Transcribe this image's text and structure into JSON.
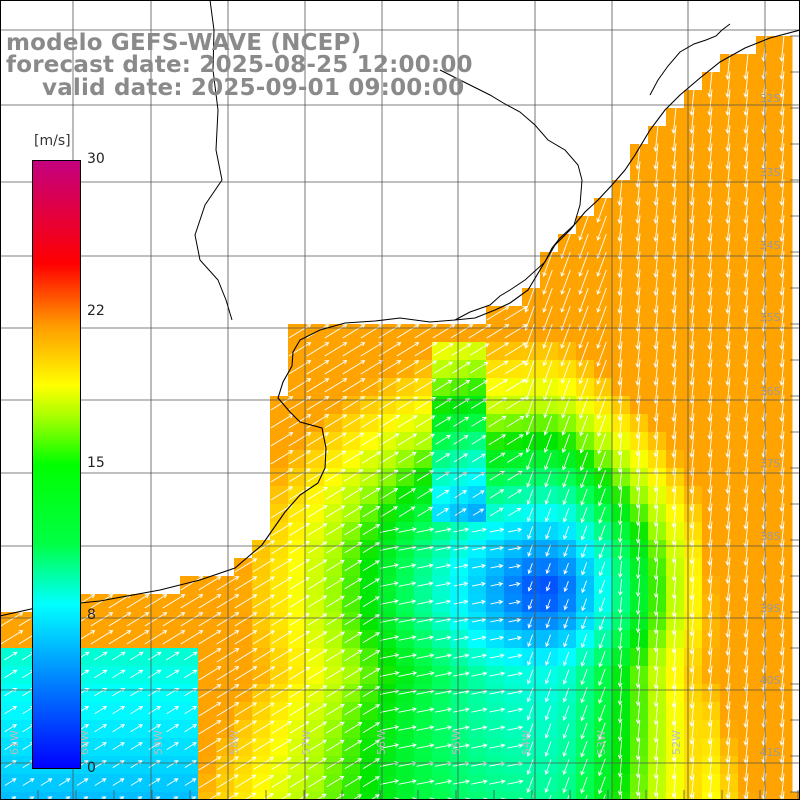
{
  "header": {
    "model": "modelo GEFS-WAVE (NCEP)",
    "forecast": "forecast date: 2025-08-25 12:00:00",
    "valid": "valid date: 2025-09-01 09:00:00"
  },
  "colorbar": {
    "unit": "[m/s]",
    "ticks": [
      "30",
      "22",
      "15",
      "8",
      "0"
    ],
    "tick_values": [
      30,
      22,
      15,
      8,
      0
    ],
    "min": 0,
    "max": 30,
    "colors": [
      "#0000ff",
      "#00aaff",
      "#00ffff",
      "#00ff00",
      "#ffff00",
      "#ff9900",
      "#ff0000",
      "#c00080"
    ]
  },
  "lat_labels": [
    "32S",
    "33S",
    "34S",
    "35S",
    "36S",
    "37S",
    "38S",
    "39S",
    "40S",
    "41S"
  ],
  "lon_labels": [
    "61W",
    "60W",
    "59W",
    "58W",
    "57W",
    "56W",
    "55W",
    "54W",
    "53W",
    "52W"
  ],
  "map": {
    "land_color": "#ffffff",
    "coastline_color": "#000000",
    "grid_color": "#555555",
    "arrow_color": "#ffffff"
  }
}
